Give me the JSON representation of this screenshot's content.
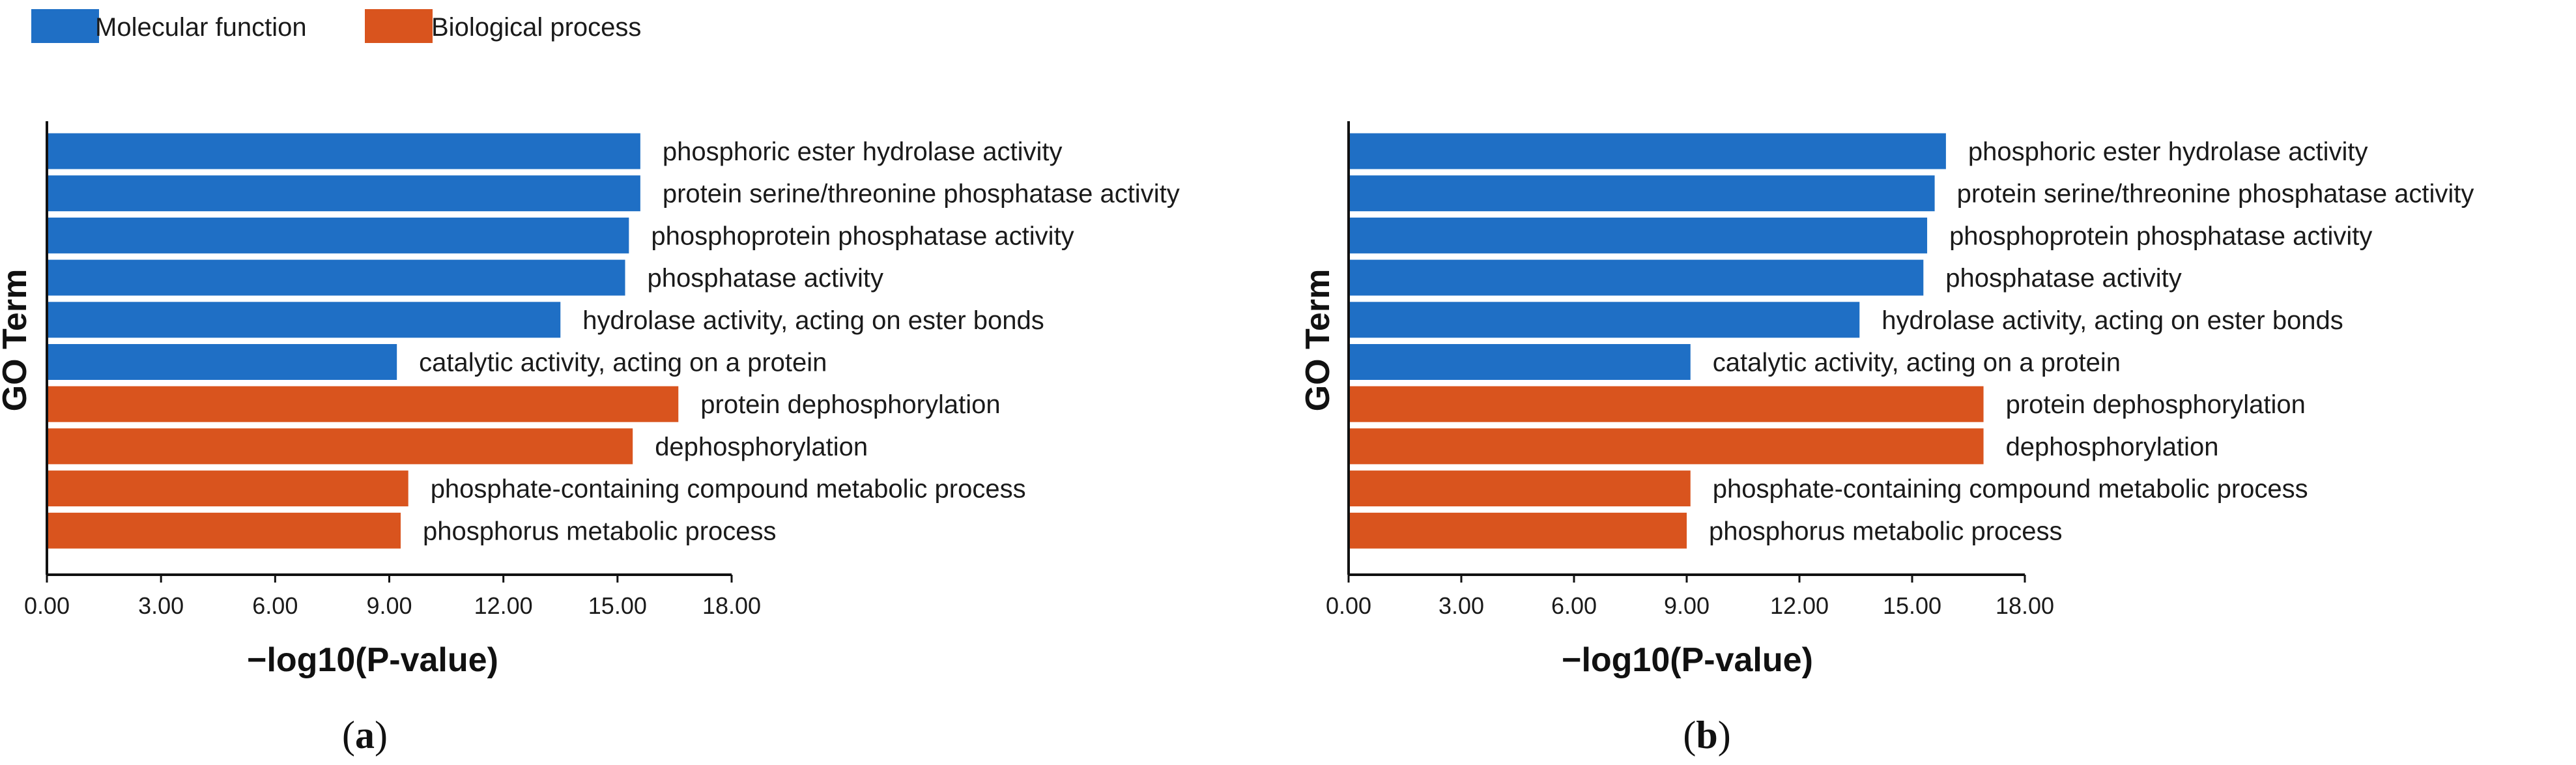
{
  "legend": [
    {
      "label": "Molecular function",
      "color": "#1f6fc5"
    },
    {
      "label": "Biological process",
      "color": "#d9541e"
    }
  ],
  "chart_data": [
    {
      "type": "bar",
      "orientation": "horizontal",
      "panel": "a",
      "xlabel": "−log10(P-value)",
      "ylabel": "GO Term",
      "xlim": [
        0,
        18
      ],
      "xticks": [
        "0.00",
        "3.00",
        "6.00",
        "9.00",
        "12.00",
        "15.00",
        "18.00"
      ],
      "categories": [
        "phosphoric ester hydrolase activity",
        "protein serine/threonine phosphatase activity",
        "phosphoprotein phosphatase activity",
        "phosphatase activity",
        "hydrolase activity, acting on ester bonds",
        "catalytic activity, acting on a protein",
        "protein dephosphorylation",
        "dephosphorylation",
        "phosphate-containing compound metabolic process",
        "phosphorus metabolic process"
      ],
      "values": [
        15.6,
        15.6,
        15.3,
        15.2,
        13.5,
        9.2,
        16.6,
        15.4,
        9.5,
        9.3
      ],
      "groups": [
        "Molecular function",
        "Molecular function",
        "Molecular function",
        "Molecular function",
        "Molecular function",
        "Molecular function",
        "Biological process",
        "Biological process",
        "Biological process",
        "Biological process"
      ]
    },
    {
      "type": "bar",
      "orientation": "horizontal",
      "panel": "b",
      "xlabel": "−log10(P-value)",
      "ylabel": "GO Term",
      "xlim": [
        0,
        18
      ],
      "xticks": [
        "0.00",
        "3.00",
        "6.00",
        "9.00",
        "12.00",
        "15.00",
        "18.00"
      ],
      "categories": [
        "phosphoric ester hydrolase activity",
        "protein serine/threonine phosphatase activity",
        "phosphoprotein phosphatase activity",
        "phosphatase activity",
        "hydrolase activity, acting on ester bonds",
        "catalytic activity, acting on a protein",
        "protein dephosphorylation",
        "dephosphorylation",
        "phosphate-containing compound metabolic process",
        "phosphorus metabolic process"
      ],
      "values": [
        15.9,
        15.6,
        15.4,
        15.3,
        13.6,
        9.1,
        16.9,
        16.9,
        9.1,
        9.0
      ],
      "groups": [
        "Molecular function",
        "Molecular function",
        "Molecular function",
        "Molecular function",
        "Molecular function",
        "Molecular function",
        "Biological process",
        "Biological process",
        "Biological process",
        "Biological process"
      ]
    }
  ]
}
